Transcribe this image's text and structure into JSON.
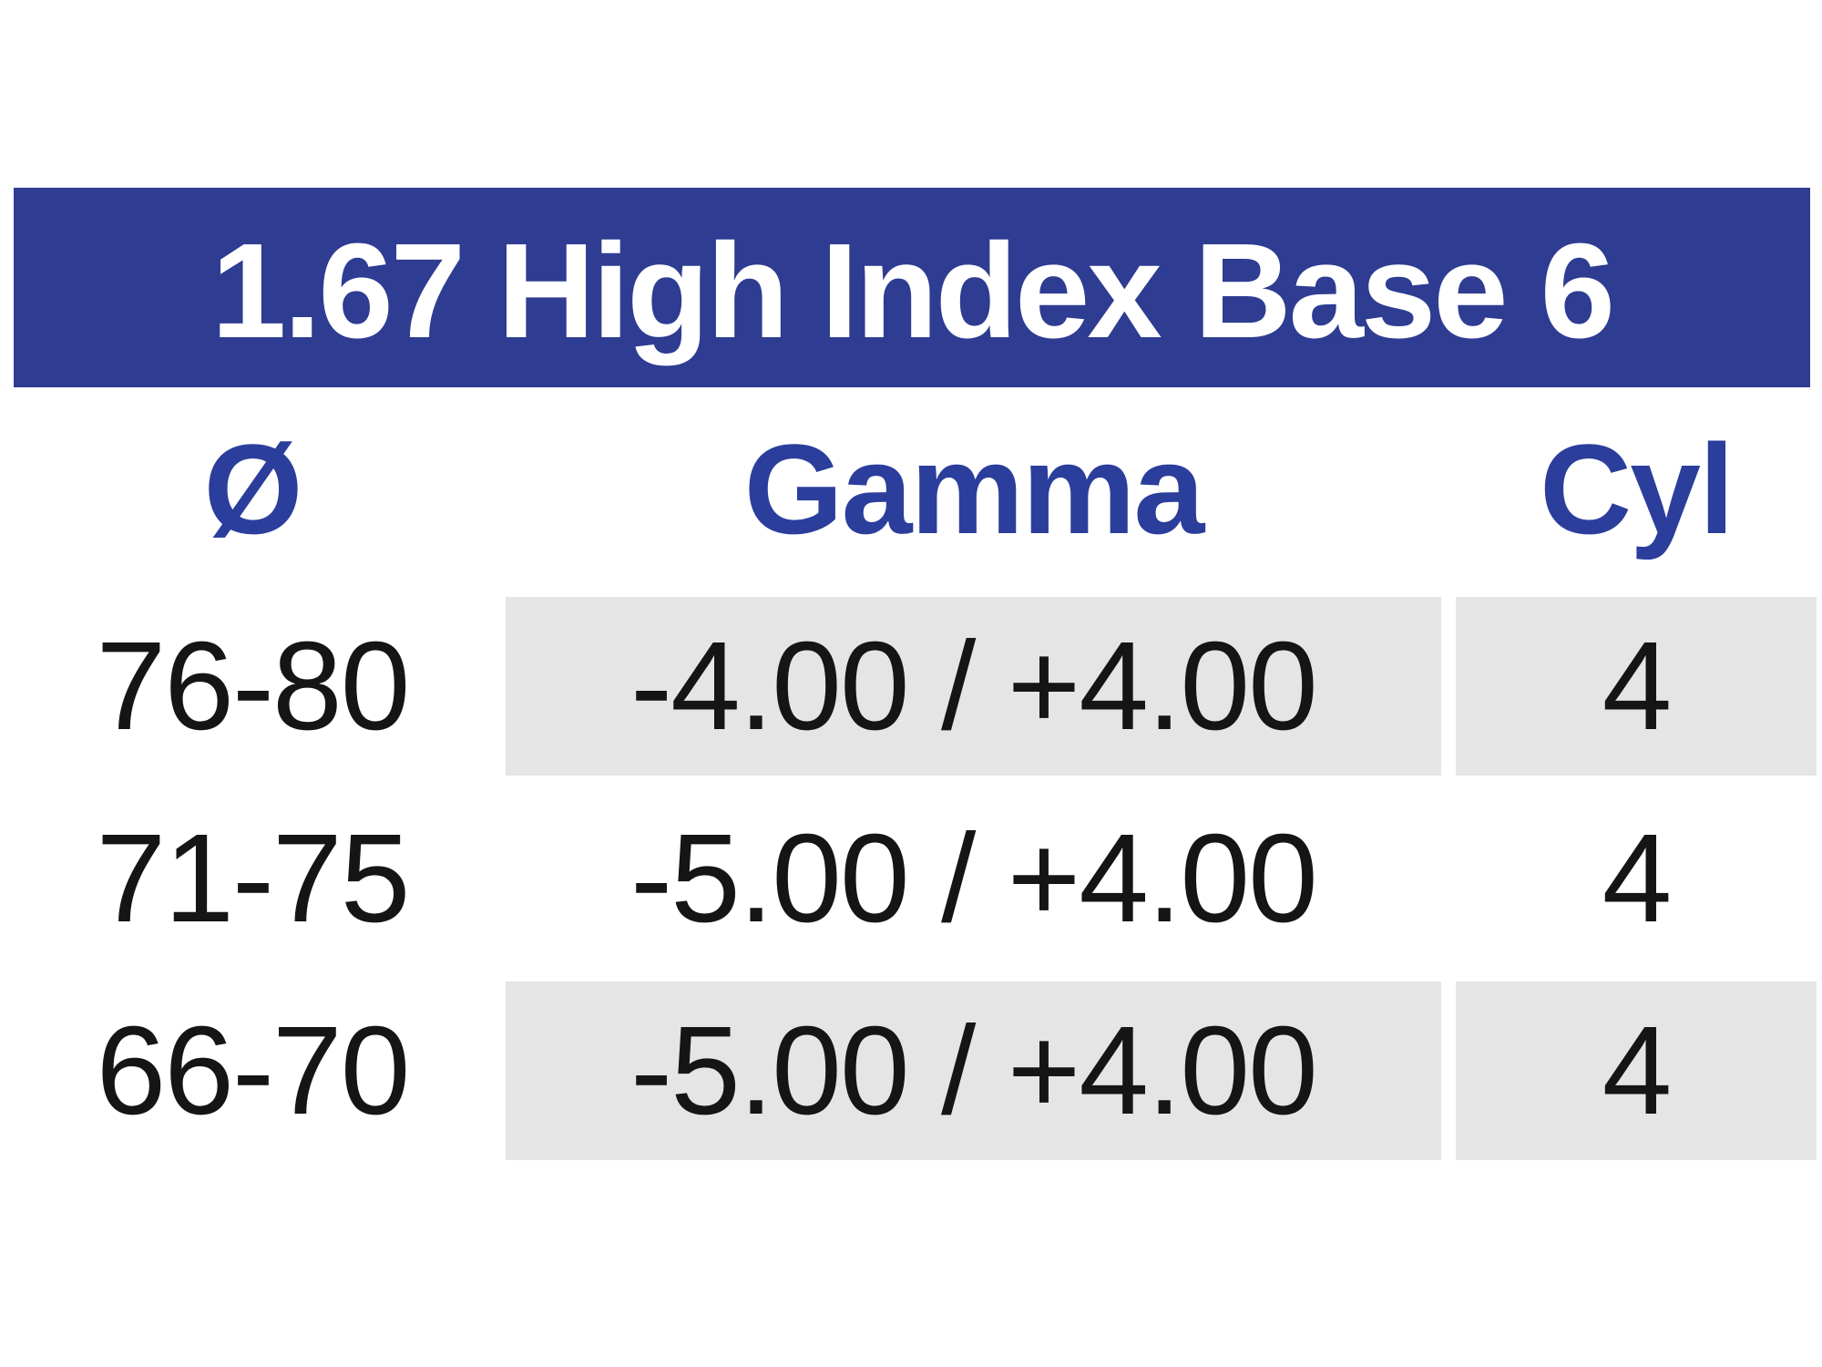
{
  "page": {
    "background": "#ffffff"
  },
  "table": {
    "title": "1.67 High Index Base 6",
    "columns": [
      {
        "id": "diameter",
        "label": "Ø"
      },
      {
        "id": "gamma",
        "label": "Gamma"
      },
      {
        "id": "cyl",
        "label": "Cyl"
      }
    ],
    "rows": [
      {
        "diameter": "76-80",
        "gamma": "-4.00 / +4.00",
        "cyl": "4",
        "shaded": true
      },
      {
        "diameter": "71-75",
        "gamma": "-5.00 / +4.00",
        "cyl": "4",
        "shaded": false
      },
      {
        "diameter": "66-70",
        "gamma": "-5.00 / +4.00",
        "cyl": "4",
        "shaded": true
      }
    ],
    "colors": {
      "title_bar": "#2e3c92",
      "title_text": "#ffffff",
      "header_text": "#2b3e9c",
      "shaded_cell": "#e5e5e6",
      "body_text": "#151515",
      "page_bg": "#ffffff"
    }
  }
}
